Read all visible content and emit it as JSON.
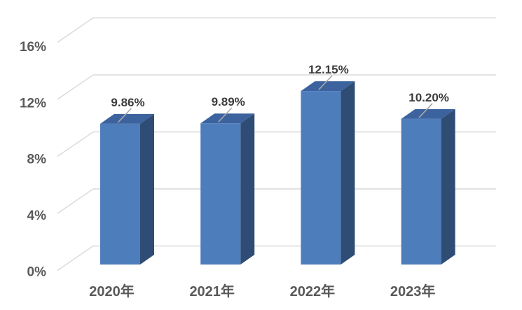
{
  "chart_data": {
    "type": "bar",
    "style": "3d-column",
    "title": "",
    "xlabel": "",
    "ylabel": "",
    "categories": [
      "2020年",
      "2021年",
      "2022年",
      "2023年"
    ],
    "values": [
      9.86,
      9.89,
      12.15,
      10.2
    ],
    "value_labels": [
      "9.86%",
      "9.89%",
      "12.15%",
      "10.20%"
    ],
    "ylim": [
      0,
      16
    ],
    "yticks": [
      0,
      4,
      8,
      12,
      16
    ],
    "ytick_labels": [
      "0%",
      "4%",
      "8%",
      "12%",
      "16%"
    ],
    "grid": true,
    "legend": "none",
    "colors": {
      "background": "#ffffff",
      "bar_front": "#4e7dbc",
      "bar_top": "#3c639e",
      "bar_side": "#2e4c74",
      "gridline": "#d9d9d9",
      "leader_line": "#a8a8a8",
      "value_label_text": "#3b3b3b",
      "axis_label_text": "#595959"
    }
  }
}
